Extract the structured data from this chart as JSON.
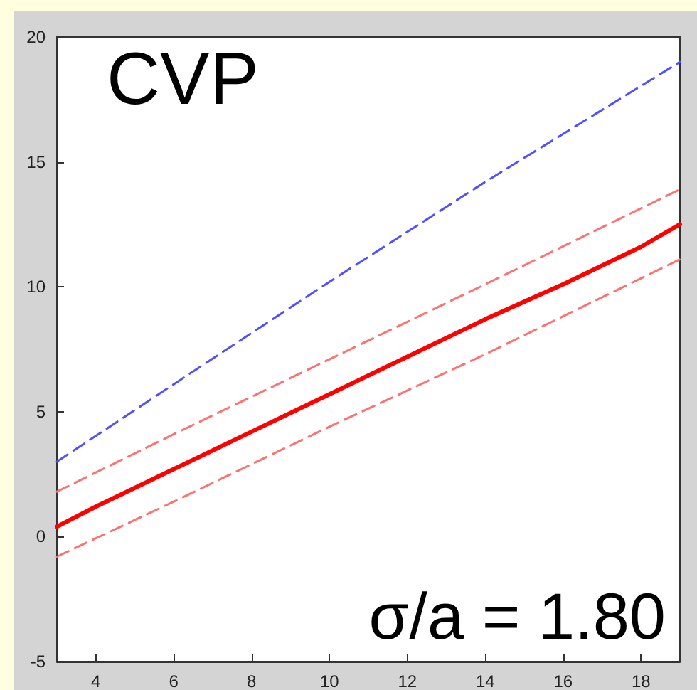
{
  "chart_data": {
    "type": "line",
    "xlim": [
      3,
      19
    ],
    "ylim": [
      -5,
      20
    ],
    "xticks": [
      4,
      6,
      8,
      10,
      12,
      14,
      16,
      18
    ],
    "yticks": [
      -5,
      0,
      5,
      10,
      15,
      20
    ],
    "grid": false,
    "marker": "none",
    "annotations": [
      "CVP",
      "σ/a = 1.80"
    ],
    "series": [
      {
        "color": "#5050ff",
        "line_style": "dashed",
        "x": [
          3,
          6,
          10,
          14,
          19
        ],
        "values": [
          3,
          6.1,
          10.2,
          14.2,
          19
        ]
      },
      {
        "color": "#ff7070",
        "line_style": "dashed",
        "x": [
          3,
          6,
          10,
          14,
          19
        ],
        "values": [
          1.8,
          4.1,
          7.1,
          10.1,
          13.9
        ]
      },
      {
        "color": "#ff0000",
        "line_style": "solid",
        "x": [
          3,
          4,
          6,
          8,
          10,
          12,
          14,
          16,
          18,
          19
        ],
        "values": [
          0.4,
          1.2,
          2.7,
          4.2,
          5.7,
          7.2,
          8.7,
          10.1,
          11.6,
          12.5
        ]
      },
      {
        "color": "#ff7070",
        "line_style": "dashed",
        "x": [
          3,
          6,
          10,
          14,
          19
        ],
        "values": [
          -0.8,
          1.4,
          4.4,
          7.3,
          11.1
        ]
      }
    ]
  }
}
